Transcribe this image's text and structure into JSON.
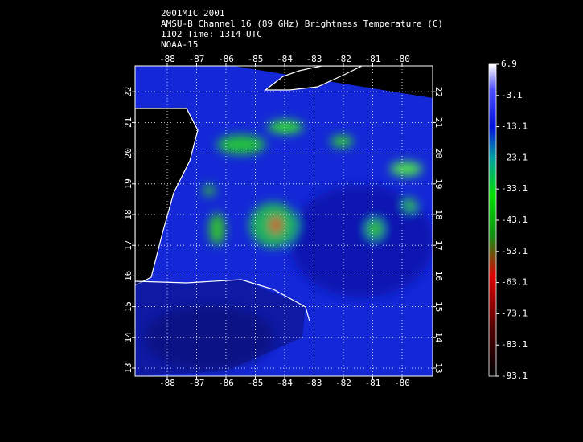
{
  "header": {
    "lines": [
      "2001MIC 2001",
      "AMSU-B Channel 16 (89 GHz) Brightness Temperature (C)",
      "1102 Time: 1314 UTC",
      "NOAA-15"
    ]
  },
  "map": {
    "lon_ticks": [
      -88,
      -87,
      -86,
      -85,
      -84,
      -83,
      -82,
      -81,
      -80
    ],
    "lat_ticks": [
      13,
      14,
      15,
      16,
      17,
      18,
      19,
      20,
      21,
      22
    ]
  },
  "colorbar": {
    "ticks": [
      6.9,
      -3.1,
      -13.1,
      -23.1,
      -33.1,
      -43.1,
      -53.1,
      -63.1,
      -73.1,
      -83.1,
      -93.1
    ]
  }
}
